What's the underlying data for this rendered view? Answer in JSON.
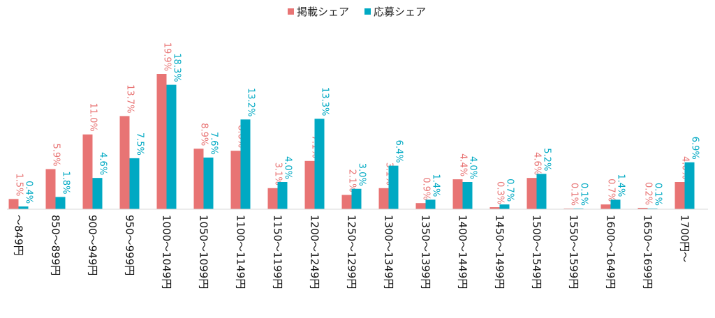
{
  "chart_data": {
    "type": "bar",
    "title": "",
    "xlabel": "",
    "ylabel": "",
    "ylim": [
      0,
      20
    ],
    "grid": false,
    "legend_position": "top-center",
    "categories": [
      "～849円",
      "850～899円",
      "900～949円",
      "950～999円",
      "1000～1049円",
      "1050～1099円",
      "1100～1149円",
      "1150～1199円",
      "1200～1249円",
      "1250～1299円",
      "1300～1349円",
      "1350～1399円",
      "1400～1449円",
      "1450～1499円",
      "1500～1549円",
      "1550～1599円",
      "1600～1649円",
      "1650～1699円",
      "1700円～"
    ],
    "series": [
      {
        "name": "掲載シェア",
        "color": "#e87474",
        "values": [
          1.5,
          5.9,
          11.0,
          13.7,
          19.9,
          8.9,
          8.6,
          3.1,
          7.1,
          2.1,
          3.1,
          0.9,
          4.4,
          0.3,
          4.6,
          0.1,
          0.7,
          0.2,
          4.0
        ],
        "labels": [
          "1.5%",
          "5.9%",
          "11.0%",
          "13.7%",
          "19.9%",
          "8.9%",
          "8.6%",
          "3.1%",
          "7.1%",
          "2.1%",
          "3.1%",
          "0.9%",
          "4.4%",
          "0.3%",
          "4.6%",
          "0.1%",
          "0.7%",
          "0.2%",
          "4.0%"
        ]
      },
      {
        "name": "応募シェア",
        "color": "#00a9c3",
        "values": [
          0.4,
          1.8,
          4.6,
          7.5,
          18.3,
          7.6,
          13.2,
          4.0,
          13.3,
          3.0,
          6.4,
          1.4,
          4.0,
          0.7,
          5.2,
          0.1,
          1.4,
          0.1,
          6.9
        ],
        "labels": [
          "0.4%",
          "1.8%",
          "4.6%",
          "7.5%",
          "18.3%",
          "7.6%",
          "13.2%",
          "4.0%",
          "13.3%",
          "3.0%",
          "6.4%",
          "1.4%",
          "4.0%",
          "0.7%",
          "5.2%",
          "0.1%",
          "1.4%",
          "0.1%",
          "6.9%"
        ]
      }
    ]
  }
}
